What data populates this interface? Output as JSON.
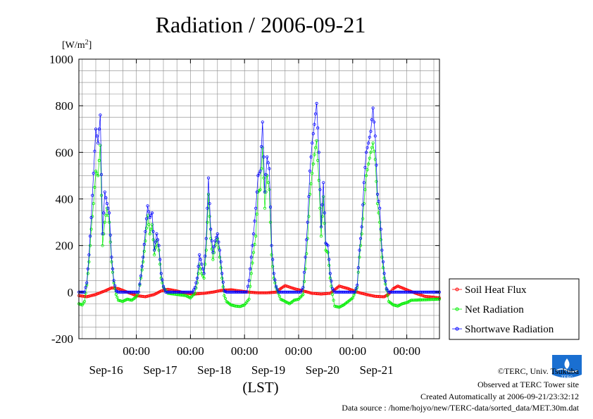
{
  "chart_data": {
    "type": "line",
    "title": "Radiation / 2006-09-21",
    "ylabel": "[W/m²]",
    "ylabel_base": "[W/m",
    "ylabel_sup": "2",
    "ylabel_end": "]",
    "xlabel": "(LST)",
    "ylim": [
      -200,
      1000
    ],
    "yticks": [
      1000,
      800,
      600,
      400,
      200,
      0,
      -200
    ],
    "x_unit": "hours since Sep-16 00:00",
    "xlim": [
      -19.5,
      140.5
    ],
    "xticks": [
      {
        "x": 6,
        "time": "00:00",
        "date": "Sep-16"
      },
      {
        "x": 30,
        "time": "00:00",
        "date": "Sep-17"
      },
      {
        "x": 54,
        "time": "00:00",
        "date": "Sep-18"
      },
      {
        "x": 78,
        "time": "00:00",
        "date": "Sep-19"
      },
      {
        "x": 102,
        "time": "00:00",
        "date": "Sep-20"
      },
      {
        "x": 126,
        "time": "00:00",
        "date": "Sep-21"
      }
    ],
    "grid": true,
    "legend_position": "bottom-right",
    "series": [
      {
        "name": "Soil Heat Flux",
        "color": "#ff0000",
        "points": [
          [
            -19.5,
            -15
          ],
          [
            -16,
            -20
          ],
          [
            -12,
            -10
          ],
          [
            -8,
            5
          ],
          [
            -5,
            18
          ],
          [
            -2,
            15
          ],
          [
            2,
            0
          ],
          [
            6,
            -15
          ],
          [
            10,
            -20
          ],
          [
            14,
            -10
          ],
          [
            17,
            5
          ],
          [
            20,
            12
          ],
          [
            24,
            5
          ],
          [
            28,
            -5
          ],
          [
            32,
            -8
          ],
          [
            36,
            -5
          ],
          [
            40,
            0
          ],
          [
            44,
            8
          ],
          [
            48,
            10
          ],
          [
            52,
            5
          ],
          [
            56,
            0
          ],
          [
            60,
            -3
          ],
          [
            64,
            -3
          ],
          [
            68,
            0
          ],
          [
            70,
            15
          ],
          [
            72,
            28
          ],
          [
            76,
            15
          ],
          [
            80,
            5
          ],
          [
            84,
            -5
          ],
          [
            88,
            -8
          ],
          [
            92,
            -5
          ],
          [
            94,
            10
          ],
          [
            96,
            26
          ],
          [
            100,
            15
          ],
          [
            104,
            0
          ],
          [
            108,
            -10
          ],
          [
            112,
            -18
          ],
          [
            116,
            -20
          ],
          [
            118,
            -8
          ],
          [
            120,
            15
          ],
          [
            122,
            26
          ],
          [
            126,
            10
          ],
          [
            130,
            -5
          ],
          [
            134,
            -18
          ],
          [
            138,
            -22
          ],
          [
            140.5,
            -25
          ]
        ]
      },
      {
        "name": "Net Radiation",
        "color": "#00ee00",
        "points": [
          [
            -19.5,
            -50
          ],
          [
            -18,
            -55
          ],
          [
            -17,
            -40
          ],
          [
            -16,
            30
          ],
          [
            -15,
            130
          ],
          [
            -14,
            270
          ],
          [
            -13,
            380
          ],
          [
            -12,
            520
          ],
          [
            -11,
            500
          ],
          [
            -10,
            630
          ],
          [
            -9,
            200
          ],
          [
            -8,
            300
          ],
          [
            -7,
            360
          ],
          [
            -6,
            300
          ],
          [
            -5,
            130
          ],
          [
            -4,
            40
          ],
          [
            -3,
            -10
          ],
          [
            -2,
            -35
          ],
          [
            0,
            -40
          ],
          [
            2,
            -30
          ],
          [
            4,
            -35
          ],
          [
            6,
            -20
          ],
          [
            7,
            0
          ],
          [
            8,
            60
          ],
          [
            9,
            130
          ],
          [
            10,
            220
          ],
          [
            11,
            330
          ],
          [
            12,
            250
          ],
          [
            13,
            290
          ],
          [
            14,
            160
          ],
          [
            15,
            220
          ],
          [
            16,
            180
          ],
          [
            17,
            60
          ],
          [
            18,
            20
          ],
          [
            20,
            -5
          ],
          [
            24,
            -10
          ],
          [
            28,
            -15
          ],
          [
            30,
            -25
          ],
          [
            32,
            -5
          ],
          [
            33,
            40
          ],
          [
            34,
            120
          ],
          [
            35,
            80
          ],
          [
            36,
            60
          ],
          [
            37,
            180
          ],
          [
            38,
            420
          ],
          [
            39,
            230
          ],
          [
            40,
            140
          ],
          [
            41,
            200
          ],
          [
            42,
            230
          ],
          [
            43,
            150
          ],
          [
            44,
            60
          ],
          [
            45,
            -15
          ],
          [
            46,
            -40
          ],
          [
            48,
            -55
          ],
          [
            50,
            -60
          ],
          [
            52,
            -62
          ],
          [
            54,
            -55
          ],
          [
            56,
            -30
          ],
          [
            57,
            80
          ],
          [
            58,
            170
          ],
          [
            59,
            240
          ],
          [
            60,
            430
          ],
          [
            61,
            440
          ],
          [
            62,
            620
          ],
          [
            63,
            360
          ],
          [
            64,
            500
          ],
          [
            65,
            440
          ],
          [
            66,
            160
          ],
          [
            67,
            60
          ],
          [
            68,
            20
          ],
          [
            70,
            -30
          ],
          [
            72,
            -40
          ],
          [
            74,
            -50
          ],
          [
            76,
            -35
          ],
          [
            78,
            -30
          ],
          [
            80,
            -10
          ],
          [
            81,
            100
          ],
          [
            82,
            230
          ],
          [
            83,
            420
          ],
          [
            84,
            510
          ],
          [
            85,
            590
          ],
          [
            86,
            650
          ],
          [
            87,
            480
          ],
          [
            88,
            240
          ],
          [
            89,
            410
          ],
          [
            90,
            180
          ],
          [
            91,
            170
          ],
          [
            92,
            60
          ],
          [
            93,
            -10
          ],
          [
            94,
            -60
          ],
          [
            96,
            -65
          ],
          [
            98,
            -55
          ],
          [
            100,
            -40
          ],
          [
            102,
            -25
          ],
          [
            104,
            20
          ],
          [
            105,
            150
          ],
          [
            106,
            250
          ],
          [
            107,
            380
          ],
          [
            108,
            500
          ],
          [
            109,
            550
          ],
          [
            110,
            600
          ],
          [
            111,
            640
          ],
          [
            112,
            570
          ],
          [
            113,
            380
          ],
          [
            114,
            300
          ],
          [
            115,
            150
          ],
          [
            116,
            60
          ],
          [
            117,
            10
          ],
          [
            118,
            -40
          ],
          [
            120,
            -55
          ],
          [
            122,
            -60
          ],
          [
            124,
            -50
          ],
          [
            126,
            -45
          ],
          [
            128,
            -35
          ],
          [
            140.5,
            -30
          ]
        ]
      },
      {
        "name": "Shortwave Radiation",
        "color": "#0000ff",
        "points": [
          [
            -19.5,
            0
          ],
          [
            -17,
            0
          ],
          [
            -16,
            40
          ],
          [
            -15,
            160
          ],
          [
            -14,
            320
          ],
          [
            -13,
            510
          ],
          [
            -12,
            700
          ],
          [
            -11,
            640
          ],
          [
            -10,
            760
          ],
          [
            -9,
            250
          ],
          [
            -8,
            430
          ],
          [
            -7,
            380
          ],
          [
            -6,
            340
          ],
          [
            -5,
            150
          ],
          [
            -4,
            50
          ],
          [
            -3,
            5
          ],
          [
            -2,
            0
          ],
          [
            7,
            0
          ],
          [
            8,
            70
          ],
          [
            9,
            150
          ],
          [
            10,
            260
          ],
          [
            11,
            370
          ],
          [
            12,
            320
          ],
          [
            13,
            340
          ],
          [
            14,
            180
          ],
          [
            15,
            250
          ],
          [
            16,
            200
          ],
          [
            17,
            80
          ],
          [
            18,
            25
          ],
          [
            19,
            0
          ],
          [
            31,
            0
          ],
          [
            32,
            20
          ],
          [
            33,
            60
          ],
          [
            34,
            160
          ],
          [
            35,
            120
          ],
          [
            36,
            80
          ],
          [
            37,
            230
          ],
          [
            38,
            490
          ],
          [
            39,
            270
          ],
          [
            40,
            170
          ],
          [
            41,
            220
          ],
          [
            42,
            250
          ],
          [
            43,
            180
          ],
          [
            44,
            80
          ],
          [
            45,
            5
          ],
          [
            46,
            0
          ],
          [
            55,
            0
          ],
          [
            56,
            50
          ],
          [
            57,
            150
          ],
          [
            58,
            250
          ],
          [
            59,
            360
          ],
          [
            60,
            500
          ],
          [
            61,
            520
          ],
          [
            62,
            730
          ],
          [
            63,
            430
          ],
          [
            64,
            580
          ],
          [
            65,
            530
          ],
          [
            66,
            200
          ],
          [
            67,
            80
          ],
          [
            68,
            25
          ],
          [
            69,
            0
          ],
          [
            79,
            0
          ],
          [
            80,
            20
          ],
          [
            81,
            150
          ],
          [
            82,
            300
          ],
          [
            83,
            520
          ],
          [
            84,
            640
          ],
          [
            85,
            720
          ],
          [
            86,
            810
          ],
          [
            87,
            600
          ],
          [
            88,
            280
          ],
          [
            89,
            470
          ],
          [
            90,
            210
          ],
          [
            91,
            200
          ],
          [
            92,
            80
          ],
          [
            93,
            15
          ],
          [
            94,
            0
          ],
          [
            103,
            0
          ],
          [
            104,
            30
          ],
          [
            105,
            180
          ],
          [
            106,
            280
          ],
          [
            107,
            470
          ],
          [
            108,
            600
          ],
          [
            109,
            640
          ],
          [
            110,
            690
          ],
          [
            111,
            790
          ],
          [
            112,
            670
          ],
          [
            113,
            420
          ],
          [
            114,
            360
          ],
          [
            115,
            180
          ],
          [
            116,
            80
          ],
          [
            117,
            15
          ],
          [
            118,
            0
          ],
          [
            140.5,
            0
          ]
        ]
      }
    ]
  },
  "credits": {
    "copyright": "©TERC, Univ. Tsukuba",
    "observed": "Observed at TERC Tower site",
    "created": "Created Automatically at 2006-09-21/23:32:12",
    "source": "Data source : /home/hojyo/new/TERC-data/sorted_data/MET.30m.dat"
  },
  "logo": {
    "text": "TERC",
    "color": "#1a6fd1"
  }
}
